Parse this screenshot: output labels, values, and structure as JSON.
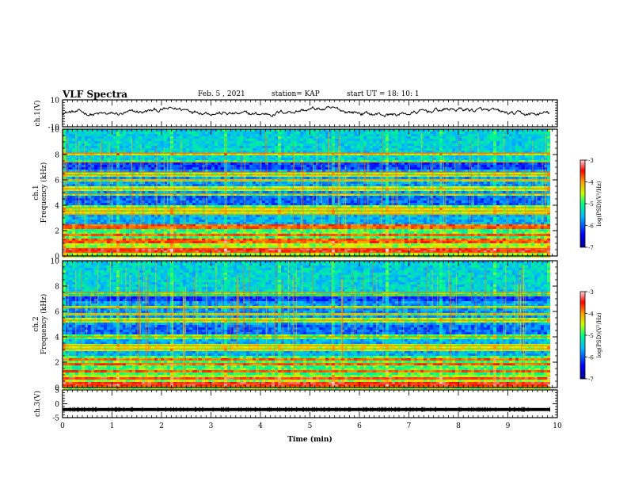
{
  "header": {
    "title": "VLF Spectra",
    "date": "Feb. 5 , 2021",
    "station": "station= KAP",
    "start": "start UT = 18: 10: 1"
  },
  "chart_data": [
    {
      "type": "line",
      "panel": "ch1-waveform",
      "ylabel": "ch.1(V)",
      "ylim": [
        -10,
        10
      ],
      "ytick_labels": [
        "10",
        "-10"
      ],
      "x_range_min": [
        0,
        9.85
      ],
      "series": [
        {
          "trend": "noisy voltage trace fluctuating roughly between -4 and 5 V"
        }
      ]
    },
    {
      "type": "heatmap",
      "panel": "ch1-spectrogram",
      "ylabel_lines": [
        "ch.1",
        "Frequency (kHz)"
      ],
      "ylim": [
        0,
        10
      ],
      "ytick_labels": [
        "0",
        "2",
        "4",
        "6",
        "8",
        "10"
      ],
      "colorbar": {
        "label": "log(PSD)(V²/Hz)",
        "range": [
          -7,
          -3
        ],
        "tick_labels": [
          "-3",
          "-4",
          "-5",
          "-6",
          "-7"
        ]
      },
      "bands_khz": [
        0.3,
        0.6,
        1.2,
        1.65,
        2.2,
        2.35,
        3.3,
        3.55,
        3.8,
        4.9,
        5.3,
        6.0,
        6.4,
        6.6,
        7.4,
        8.1
      ]
    },
    {
      "type": "heatmap",
      "panel": "ch2-spectrogram",
      "ylabel_lines": [
        "ch.2",
        "Frequency (kHz)"
      ],
      "ylim": [
        0,
        10
      ],
      "ytick_labels": [
        "0",
        "2",
        "4",
        "6",
        "8",
        "10"
      ],
      "colorbar": {
        "label": "log(PSD)(V²/Hz)",
        "range": [
          -7,
          -3
        ],
        "tick_labels": [
          "-3",
          "-4",
          "-5",
          "-6",
          "-7"
        ]
      },
      "bands_khz": [
        0.1,
        0.3,
        0.7,
        1.3,
        1.9,
        2.2,
        3.05,
        3.3,
        4.0,
        5.3,
        5.8,
        6.3,
        7.3,
        7.5
      ]
    },
    {
      "type": "line",
      "panel": "ch3-waveform",
      "ylabel": "ch.3(V)",
      "ylim": [
        -5,
        5
      ],
      "ytick_labels": [
        "5",
        "0",
        "-5"
      ],
      "xlabel": "Time (min)",
      "xlim": [
        0,
        10
      ],
      "xtick_labels": [
        "0",
        "1",
        "2",
        "3",
        "4",
        "5",
        "6",
        "7",
        "8",
        "9",
        "10"
      ],
      "series": [
        {
          "trend": "dense thin band near -2 V"
        }
      ]
    }
  ]
}
